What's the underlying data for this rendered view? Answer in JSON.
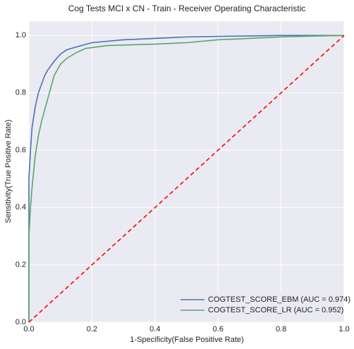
{
  "chart_data": {
    "type": "line",
    "title": "Cog Tests MCI x CN - Train - Receiver Operating Characteristic",
    "x_label": "1-Specificity(False Positive Rate)",
    "y_label": "Sensitivity(True Positive Rate)",
    "xlim": [
      0,
      1
    ],
    "ylim": [
      0,
      1.05
    ],
    "xticks": [
      {
        "value": 0,
        "label": "0.0"
      },
      0.2,
      0.4,
      0.6,
      0.8,
      {
        "value": 1,
        "label": "1.0"
      }
    ],
    "yticks": [
      {
        "value": 0,
        "label": "0.0"
      },
      0.2,
      0.4,
      0.6,
      0.8,
      {
        "value": 1,
        "label": "1.0"
      }
    ],
    "grid": true,
    "legend": "lower right",
    "series": [
      {
        "name": "COGTEST_SCORE_EBM (AUC = 0.974)",
        "color": "#4c72b0",
        "x": [
          0,
          0,
          0.005,
          0.01,
          0.02,
          0.03,
          0.04,
          0.05,
          0.06,
          0.08,
          0.1,
          0.12,
          0.15,
          0.2,
          0.3,
          0.4,
          0.5,
          0.6,
          0.8,
          1
        ],
        "values": [
          0,
          0.5,
          0.6,
          0.68,
          0.75,
          0.8,
          0.83,
          0.86,
          0.88,
          0.91,
          0.935,
          0.95,
          0.96,
          0.975,
          0.985,
          0.99,
          0.995,
          0.997,
          1,
          1
        ]
      },
      {
        "name": "COGTEST_SCORE_LR (AUC = 0.952)",
        "color": "#55a868",
        "x": [
          0,
          0,
          0.005,
          0.01,
          0.02,
          0.03,
          0.04,
          0.05,
          0.06,
          0.07,
          0.08,
          0.1,
          0.12,
          0.15,
          0.18,
          0.25,
          0.4,
          0.5,
          0.6,
          0.7,
          0.8,
          0.9,
          1
        ],
        "values": [
          0,
          0.3,
          0.4,
          0.47,
          0.58,
          0.65,
          0.7,
          0.74,
          0.78,
          0.82,
          0.86,
          0.9,
          0.92,
          0.94,
          0.955,
          0.965,
          0.97,
          0.975,
          0.985,
          0.99,
          0.995,
          0.998,
          1
        ]
      }
    ],
    "diagonal": {
      "x": [
        0,
        1
      ],
      "values": [
        0,
        1
      ],
      "color": "#ff0000"
    }
  }
}
